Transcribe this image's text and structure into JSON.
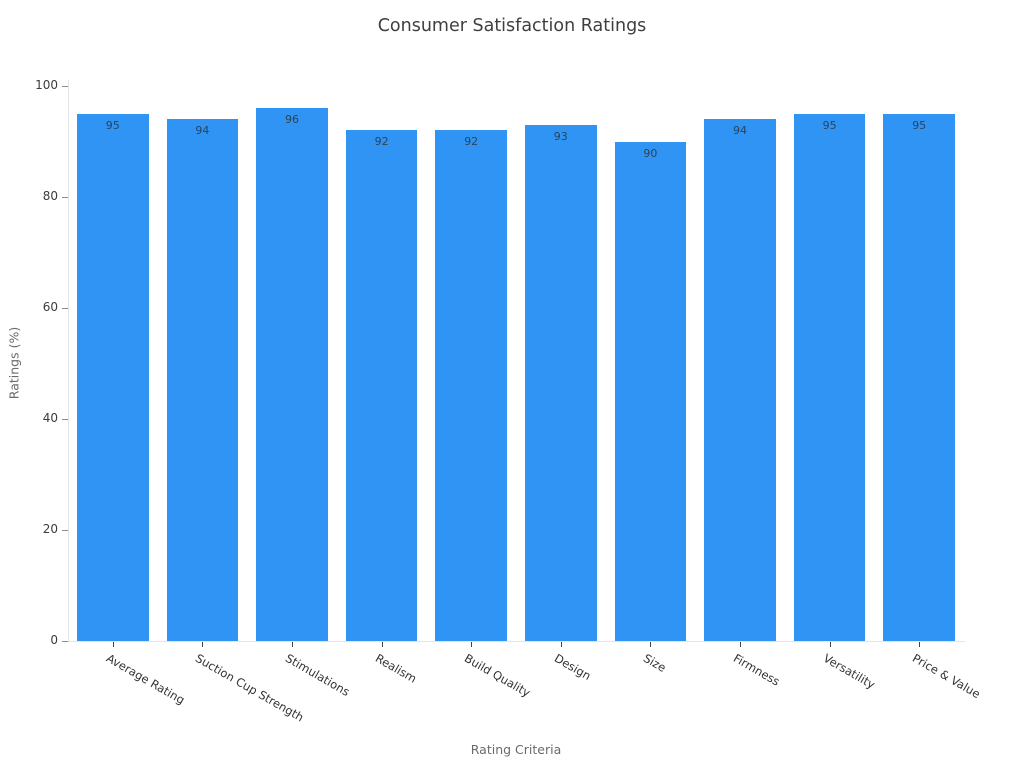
{
  "chart_data": {
    "type": "bar",
    "title": "Consumer Satisfaction Ratings",
    "xlabel": "Rating Criteria",
    "ylabel": "Ratings (%)",
    "categories": [
      "Average Rating",
      "Suction Cup Strength",
      "Stimulations",
      "Realism",
      "Build Quality",
      "Design",
      "Size",
      "Firmness",
      "Versatility",
      "Price & Value"
    ],
    "values": [
      95,
      94,
      96,
      92,
      92,
      93,
      90,
      94,
      95,
      95
    ],
    "ylim": [
      0,
      100
    ],
    "yticks": [
      0,
      20,
      40,
      60,
      80,
      100
    ],
    "grid": false,
    "legend": "none",
    "value_labels": "inside-top",
    "colors": {
      "bar": "#3094f5",
      "value_label": "#2b4457",
      "tick_label": "#3c3c3c",
      "axis_title": "#6b6b6b",
      "title": "#3f3f3f",
      "spine": "#e4e4e4"
    }
  }
}
